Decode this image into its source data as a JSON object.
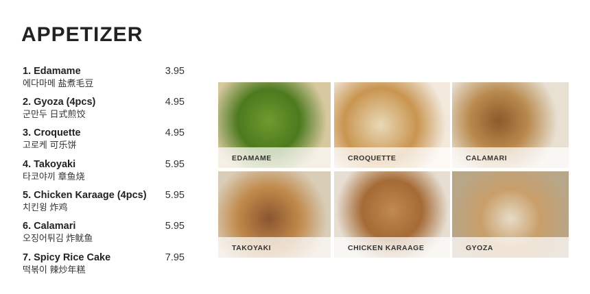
{
  "title": "APPETIZER",
  "items": [
    {
      "name": "1. Edamame",
      "sub": "에다마메 盐煮毛豆",
      "price": "3.95"
    },
    {
      "name": "2. Gyoza (4pcs)",
      "sub": "군만두 日式煎饺",
      "price": "4.95"
    },
    {
      "name": "3. Croquette",
      "sub": "고로케 可乐饼",
      "price": "4.95"
    },
    {
      "name": "4. Takoyaki",
      "sub": "타코야끼 章鱼烧",
      "price": "5.95"
    },
    {
      "name": "5. Chicken Karaage (4pcs)",
      "sub": "치킨윙 炸鸡",
      "price": "5.95"
    },
    {
      "name": "6. Calamari",
      "sub": "오징어튀김 炸鱿鱼",
      "price": "5.95"
    },
    {
      "name": "7. Spicy Rice Cake",
      "sub": "떡볶이 辣炒年糕",
      "price": "7.95"
    }
  ],
  "photos": [
    {
      "label": "EDAMAME"
    },
    {
      "label": "CROQUETTE"
    },
    {
      "label": "CALAMARI"
    },
    {
      "label": "TAKOYAKI"
    },
    {
      "label": "CHICKEN KARAAGE"
    },
    {
      "label": "GYOZA"
    }
  ]
}
